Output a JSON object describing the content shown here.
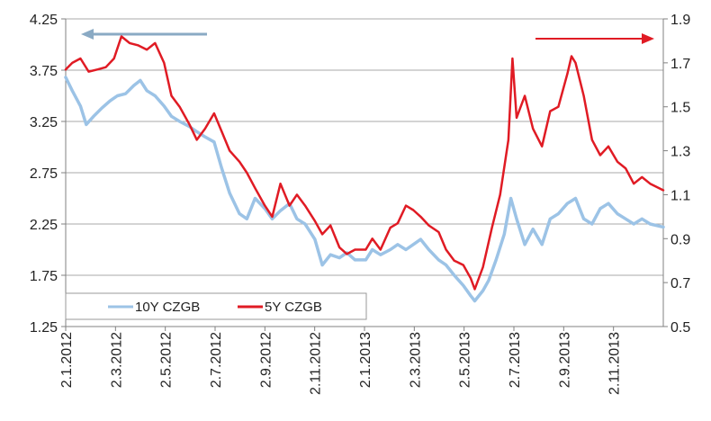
{
  "chart_data": {
    "type": "line",
    "title": "",
    "xlabel": "",
    "ylabel": "",
    "y2label": "",
    "x_tick_labels": [
      "2.1.2012",
      "2.3.2012",
      "2.5.2012",
      "2.7.2012",
      "2.9.2012",
      "2.11.2012",
      "2.1.2013",
      "2.3.2013",
      "2.5.2013",
      "2.7.2013",
      "2.9.2013",
      "2.11.2013"
    ],
    "x_range": [
      "2012-01-02",
      "2013-12-31"
    ],
    "ylim_left": [
      1.25,
      4.25
    ],
    "yticks_left": [
      "1.25",
      "1.75",
      "2.25",
      "2.75",
      "3.25",
      "3.75",
      "4.25"
    ],
    "ylim_right": [
      0.5,
      1.9
    ],
    "yticks_right": [
      "0.5",
      "0.7",
      "0.9",
      "1.1",
      "1.3",
      "1.5",
      "1.7",
      "1.9"
    ],
    "grid": "horizontal",
    "legend_position": "bottom-left",
    "series": [
      {
        "name": "10Y CZGB",
        "axis": "left",
        "color": "#9cc3e6",
        "points": [
          [
            "2012-01-02",
            3.68
          ],
          [
            "2012-01-10",
            3.55
          ],
          [
            "2012-01-20",
            3.4
          ],
          [
            "2012-01-27",
            3.22
          ],
          [
            "2012-02-05",
            3.3
          ],
          [
            "2012-02-15",
            3.38
          ],
          [
            "2012-02-25",
            3.45
          ],
          [
            "2012-03-05",
            3.5
          ],
          [
            "2012-03-15",
            3.52
          ],
          [
            "2012-03-25",
            3.6
          ],
          [
            "2012-04-02",
            3.65
          ],
          [
            "2012-04-10",
            3.55
          ],
          [
            "2012-04-20",
            3.5
          ],
          [
            "2012-05-01",
            3.4
          ],
          [
            "2012-05-10",
            3.3
          ],
          [
            "2012-05-20",
            3.25
          ],
          [
            "2012-06-01",
            3.2
          ],
          [
            "2012-06-10",
            3.15
          ],
          [
            "2012-06-20",
            3.1
          ],
          [
            "2012-07-01",
            3.05
          ],
          [
            "2012-07-10",
            2.8
          ],
          [
            "2012-07-20",
            2.55
          ],
          [
            "2012-08-01",
            2.35
          ],
          [
            "2012-08-10",
            2.3
          ],
          [
            "2012-08-20",
            2.5
          ],
          [
            "2012-09-01",
            2.4
          ],
          [
            "2012-09-10",
            2.3
          ],
          [
            "2012-09-20",
            2.38
          ],
          [
            "2012-10-01",
            2.45
          ],
          [
            "2012-10-10",
            2.3
          ],
          [
            "2012-10-20",
            2.25
          ],
          [
            "2012-11-01",
            2.1
          ],
          [
            "2012-11-10",
            1.85
          ],
          [
            "2012-11-20",
            1.95
          ],
          [
            "2012-12-01",
            1.92
          ],
          [
            "2012-12-10",
            1.97
          ],
          [
            "2012-12-20",
            1.9
          ],
          [
            "2013-01-02",
            1.9
          ],
          [
            "2013-01-10",
            2.0
          ],
          [
            "2013-01-20",
            1.95
          ],
          [
            "2013-02-01",
            2.0
          ],
          [
            "2013-02-10",
            2.05
          ],
          [
            "2013-02-20",
            2.0
          ],
          [
            "2013-03-01",
            2.05
          ],
          [
            "2013-03-10",
            2.1
          ],
          [
            "2013-03-20",
            2.0
          ],
          [
            "2013-04-01",
            1.9
          ],
          [
            "2013-04-10",
            1.85
          ],
          [
            "2013-04-20",
            1.75
          ],
          [
            "2013-05-01",
            1.65
          ],
          [
            "2013-05-10",
            1.55
          ],
          [
            "2013-05-15",
            1.5
          ],
          [
            "2013-05-25",
            1.6
          ],
          [
            "2013-06-01",
            1.7
          ],
          [
            "2013-06-10",
            1.9
          ],
          [
            "2013-06-20",
            2.15
          ],
          [
            "2013-06-28",
            2.5
          ],
          [
            "2013-07-05",
            2.3
          ],
          [
            "2013-07-15",
            2.05
          ],
          [
            "2013-07-25",
            2.2
          ],
          [
            "2013-08-05",
            2.05
          ],
          [
            "2013-08-15",
            2.3
          ],
          [
            "2013-08-25",
            2.35
          ],
          [
            "2013-09-05",
            2.45
          ],
          [
            "2013-09-15",
            2.5
          ],
          [
            "2013-09-25",
            2.3
          ],
          [
            "2013-10-05",
            2.25
          ],
          [
            "2013-10-15",
            2.4
          ],
          [
            "2013-10-25",
            2.45
          ],
          [
            "2013-11-05",
            2.35
          ],
          [
            "2013-11-15",
            2.3
          ],
          [
            "2013-11-25",
            2.25
          ],
          [
            "2013-12-05",
            2.3
          ],
          [
            "2013-12-15",
            2.25
          ],
          [
            "2013-12-31",
            2.22
          ]
        ]
      },
      {
        "name": "5Y CZGB",
        "axis": "right",
        "color": "#e01b24",
        "points": [
          [
            "2012-01-02",
            1.67
          ],
          [
            "2012-01-10",
            1.7
          ],
          [
            "2012-01-20",
            1.72
          ],
          [
            "2012-01-30",
            1.66
          ],
          [
            "2012-02-10",
            1.67
          ],
          [
            "2012-02-20",
            1.68
          ],
          [
            "2012-03-01",
            1.72
          ],
          [
            "2012-03-10",
            1.82
          ],
          [
            "2012-03-20",
            1.79
          ],
          [
            "2012-03-30",
            1.78
          ],
          [
            "2012-04-10",
            1.76
          ],
          [
            "2012-04-20",
            1.79
          ],
          [
            "2012-05-01",
            1.7
          ],
          [
            "2012-05-10",
            1.55
          ],
          [
            "2012-05-20",
            1.5
          ],
          [
            "2012-06-01",
            1.42
          ],
          [
            "2012-06-10",
            1.35
          ],
          [
            "2012-06-20",
            1.4
          ],
          [
            "2012-07-01",
            1.47
          ],
          [
            "2012-07-10",
            1.39
          ],
          [
            "2012-07-20",
            1.3
          ],
          [
            "2012-08-01",
            1.25
          ],
          [
            "2012-08-10",
            1.2
          ],
          [
            "2012-08-20",
            1.13
          ],
          [
            "2012-09-01",
            1.05
          ],
          [
            "2012-09-10",
            1.0
          ],
          [
            "2012-09-20",
            1.15
          ],
          [
            "2012-10-01",
            1.05
          ],
          [
            "2012-10-10",
            1.1
          ],
          [
            "2012-10-20",
            1.05
          ],
          [
            "2012-11-01",
            0.98
          ],
          [
            "2012-11-10",
            0.92
          ],
          [
            "2012-11-20",
            0.96
          ],
          [
            "2012-12-01",
            0.86
          ],
          [
            "2012-12-10",
            0.83
          ],
          [
            "2012-12-20",
            0.85
          ],
          [
            "2013-01-02",
            0.85
          ],
          [
            "2013-01-10",
            0.9
          ],
          [
            "2013-01-20",
            0.85
          ],
          [
            "2013-02-01",
            0.95
          ],
          [
            "2013-02-10",
            0.97
          ],
          [
            "2013-02-20",
            1.05
          ],
          [
            "2013-03-01",
            1.03
          ],
          [
            "2013-03-10",
            1.0
          ],
          [
            "2013-03-20",
            0.96
          ],
          [
            "2013-04-01",
            0.93
          ],
          [
            "2013-04-10",
            0.85
          ],
          [
            "2013-04-20",
            0.8
          ],
          [
            "2013-05-01",
            0.78
          ],
          [
            "2013-05-10",
            0.72
          ],
          [
            "2013-05-15",
            0.67
          ],
          [
            "2013-05-25",
            0.77
          ],
          [
            "2013-06-05",
            0.95
          ],
          [
            "2013-06-15",
            1.1
          ],
          [
            "2013-06-25",
            1.35
          ],
          [
            "2013-06-30",
            1.72
          ],
          [
            "2013-07-05",
            1.45
          ],
          [
            "2013-07-15",
            1.55
          ],
          [
            "2013-07-25",
            1.4
          ],
          [
            "2013-08-05",
            1.32
          ],
          [
            "2013-08-15",
            1.48
          ],
          [
            "2013-08-25",
            1.5
          ],
          [
            "2013-09-05",
            1.65
          ],
          [
            "2013-09-10",
            1.73
          ],
          [
            "2013-09-15",
            1.7
          ],
          [
            "2013-09-25",
            1.55
          ],
          [
            "2013-10-05",
            1.35
          ],
          [
            "2013-10-15",
            1.28
          ],
          [
            "2013-10-25",
            1.32
          ],
          [
            "2013-11-05",
            1.25
          ],
          [
            "2013-11-15",
            1.22
          ],
          [
            "2013-11-25",
            1.15
          ],
          [
            "2013-12-05",
            1.18
          ],
          [
            "2013-12-15",
            1.15
          ],
          [
            "2013-12-31",
            1.12
          ]
        ]
      }
    ],
    "annotations": [
      {
        "type": "arrow",
        "direction": "left",
        "meaning": "left-axis",
        "color": "#8aaac4"
      },
      {
        "type": "arrow",
        "direction": "right",
        "meaning": "right-axis",
        "color": "#e01b24"
      }
    ]
  }
}
